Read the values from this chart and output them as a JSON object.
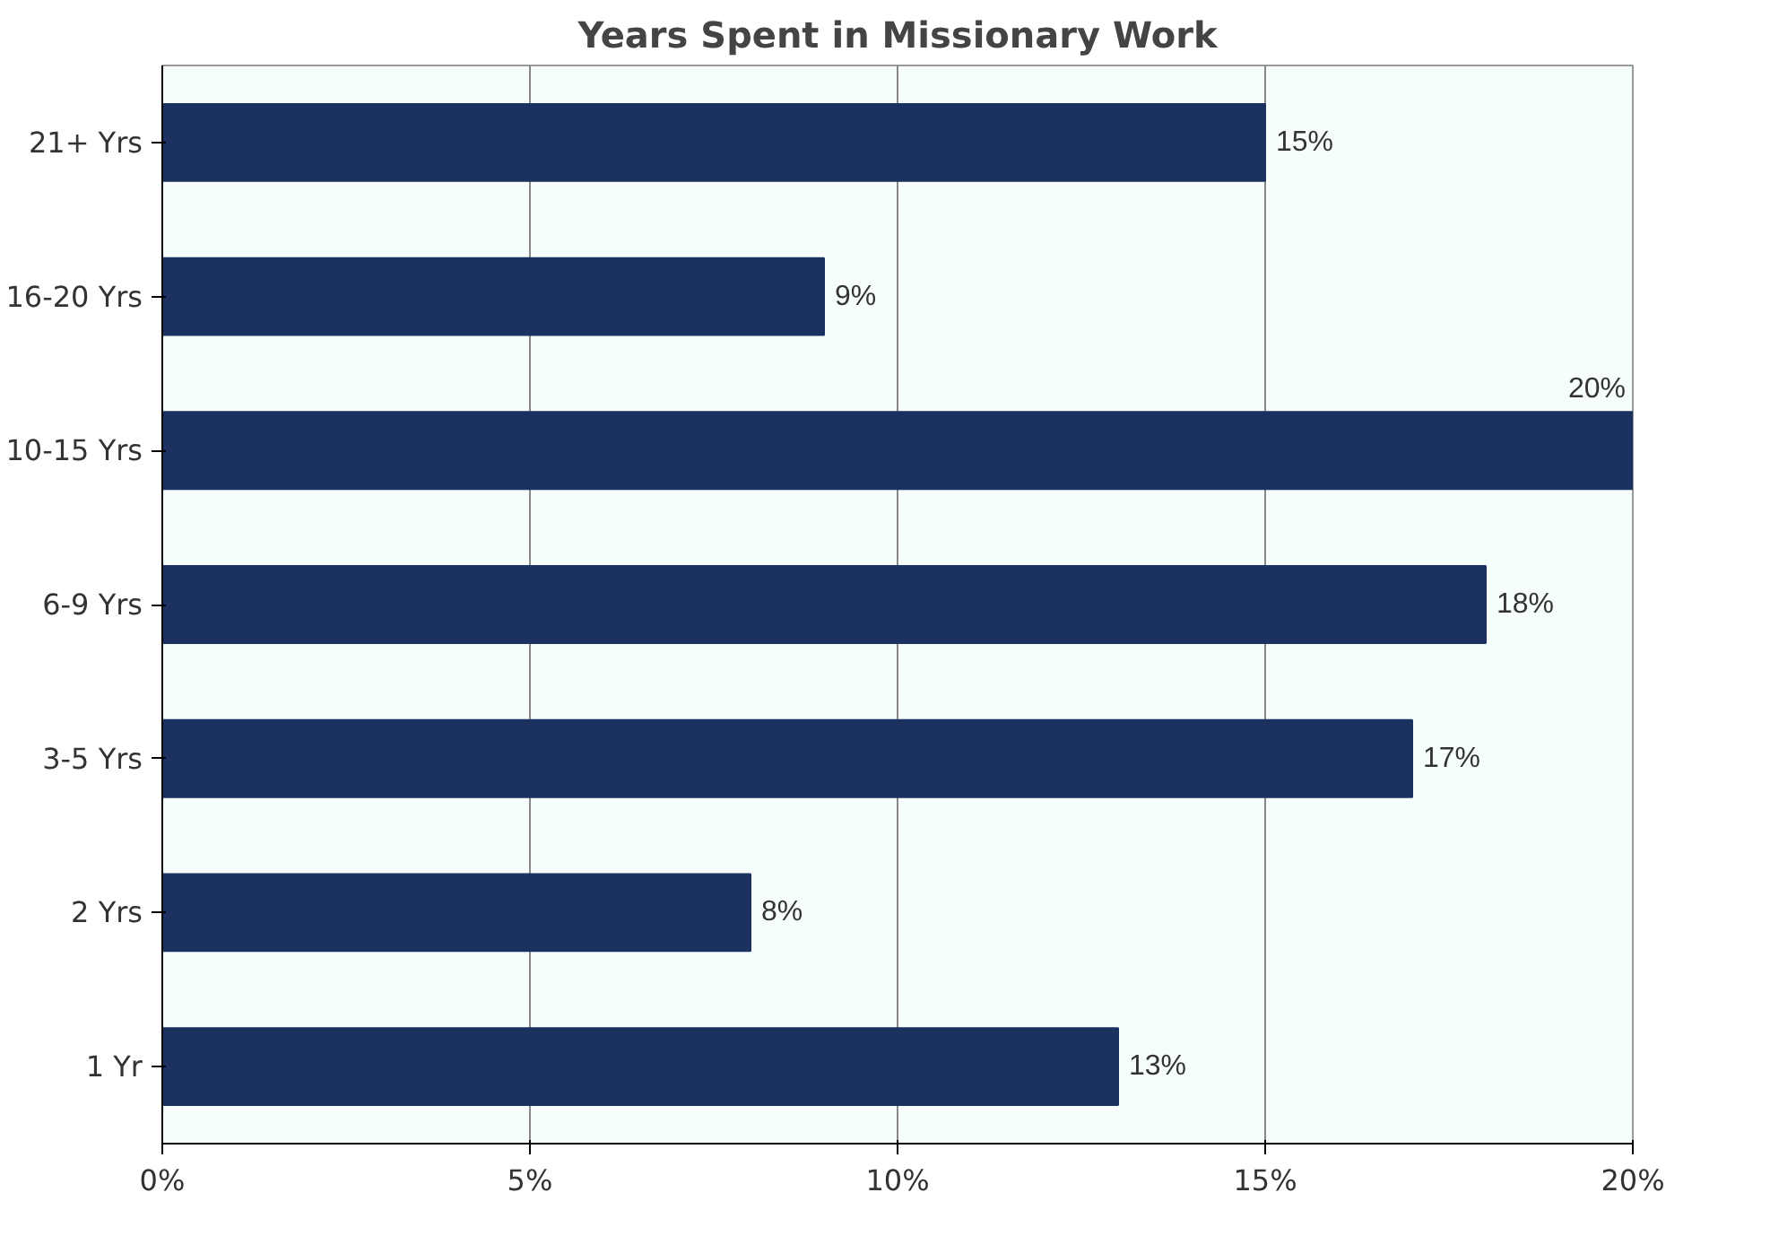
{
  "chart_data": {
    "type": "bar",
    "orientation": "horizontal",
    "title": "Years Spent in Missionary Work",
    "categories": [
      "21+ Yrs",
      "16-20 Yrs",
      "10-15 Yrs",
      "6-9 Yrs",
      "3-5 Yrs",
      "2 Yrs",
      "1 Yr"
    ],
    "values": [
      15,
      9,
      20,
      18,
      17,
      8,
      13
    ],
    "value_labels": [
      "15%",
      "9%",
      "20%",
      "18%",
      "17%",
      "8%",
      "13%"
    ],
    "color": "#1b3260",
    "xlim": [
      0,
      20
    ],
    "xticks": [
      {
        "value": 0,
        "label": "0%"
      },
      {
        "value": 5,
        "label": "5%"
      },
      {
        "value": 10,
        "label": "10%"
      },
      {
        "value": 15,
        "label": "15%"
      },
      {
        "value": 20,
        "label": "20%"
      }
    ],
    "grid": "x"
  }
}
